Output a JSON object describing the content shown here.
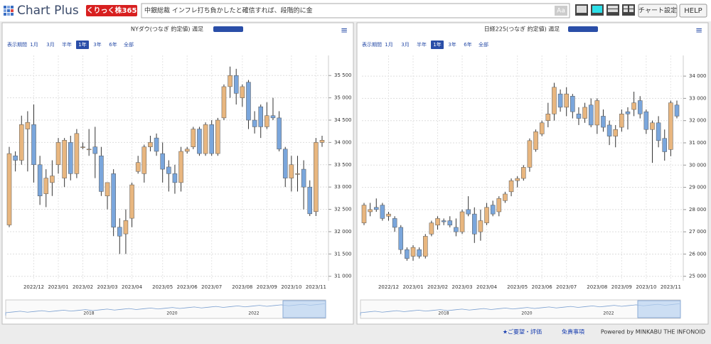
{
  "header": {
    "logo": "Chart Plus",
    "badge": "くりっく株365",
    "ticker": "中銀総裁 インフレ打ち負かしたと確信すれば、段階的に金",
    "font_button": "Aa",
    "buttons": [
      "チャート設定",
      "HELP"
    ]
  },
  "chart_data": [
    {
      "type": "candlestick",
      "title": "NYダウ(つなぎ 約定値) 週足",
      "period_label": "表示期間",
      "periods": [
        "1月",
        "3月",
        "半年",
        "1年",
        "3年",
        "6年",
        "全部"
      ],
      "selected_period": 3,
      "categories": [
        null,
        null,
        null,
        null,
        "2022/12",
        null,
        null,
        null,
        "2023/01",
        null,
        null,
        null,
        "2023/02",
        null,
        null,
        null,
        "2023/03",
        null,
        null,
        null,
        "2023/04",
        null,
        null,
        null,
        null,
        "2023/05",
        null,
        null,
        null,
        "2023/06",
        null,
        null,
        null,
        "2023/07",
        null,
        null,
        null,
        null,
        "2023/08",
        null,
        null,
        null,
        "2023/09",
        null,
        null,
        null,
        "2023/10",
        null,
        null,
        null,
        "2023/11",
        null
      ],
      "open": [
        32150,
        33700,
        33600,
        34300,
        34400,
        33500,
        32850,
        33100,
        33500,
        33200,
        34000,
        33300,
        33900,
        33850,
        33900,
        33700,
        32800,
        33300,
        32100,
        31950,
        32300,
        33350,
        33300,
        33900,
        34100,
        33750,
        33450,
        33300,
        33100,
        33800,
        33900,
        34300,
        33750,
        34400,
        33750,
        34550,
        35250,
        35500,
        35000,
        35350,
        34500,
        34800,
        34350,
        34600,
        34550,
        33850,
        33200,
        33300,
        33400,
        33000,
        32450,
        34000
      ],
      "high": [
        33900,
        33800,
        34600,
        34700,
        34850,
        33700,
        33400,
        33600,
        34100,
        34100,
        34150,
        34300,
        34000,
        34300,
        34350,
        33900,
        33100,
        33400,
        32300,
        32500,
        33100,
        33700,
        33950,
        34150,
        34200,
        34000,
        33600,
        33500,
        33900,
        33900,
        34350,
        34350,
        34450,
        34500,
        34550,
        35300,
        35700,
        35650,
        35300,
        35400,
        34700,
        34850,
        34900,
        35000,
        34700,
        33900,
        33700,
        33700,
        33600,
        33150,
        34100,
        34150
      ],
      "low": [
        32100,
        33350,
        33500,
        33350,
        33100,
        32600,
        32550,
        32800,
        33300,
        33000,
        33150,
        33200,
        33850,
        33700,
        33200,
        32800,
        32500,
        31900,
        31500,
        31500,
        32100,
        33300,
        33100,
        33800,
        33700,
        33100,
        32900,
        32850,
        32900,
        33750,
        33850,
        33700,
        33700,
        33700,
        33700,
        34500,
        35000,
        34850,
        34800,
        34300,
        34200,
        34100,
        34300,
        34500,
        33800,
        33000,
        32900,
        32900,
        32500,
        32350,
        32350,
        33900
      ],
      "close": [
        33750,
        33600,
        34400,
        34450,
        33500,
        32800,
        33200,
        33250,
        34000,
        34050,
        33300,
        34200,
        33900,
        33850,
        33750,
        32900,
        33100,
        32100,
        31900,
        32250,
        33050,
        33550,
        33900,
        34000,
        33800,
        33400,
        33300,
        33100,
        33800,
        33850,
        34300,
        33750,
        34400,
        33750,
        34500,
        35250,
        35500,
        35100,
        35250,
        34500,
        34350,
        34350,
        34600,
        34550,
        33850,
        33200,
        33500,
        33300,
        33000,
        32400,
        34000,
        34050
      ],
      "up_color": "#e8b67f",
      "down_color": "#7aa6dc",
      "grid": true,
      "ylim": [
        30900,
        35950
      ],
      "yticks": [
        {
          "value": 31000,
          "label": "31 000"
        },
        {
          "value": 31500,
          "label": "31 500"
        },
        {
          "value": 32000,
          "label": "32 000"
        },
        {
          "value": 32500,
          "label": "32 500"
        },
        {
          "value": 33000,
          "label": "33 000"
        },
        {
          "value": 33500,
          "label": "33 500"
        },
        {
          "value": 34000,
          "label": "34 000"
        },
        {
          "value": 34500,
          "label": "34 500"
        },
        {
          "value": 35000,
          "label": "35 000"
        },
        {
          "value": 35500,
          "label": "35 500"
        }
      ],
      "navigator_labels": [
        "2018",
        "2020",
        "2022"
      ]
    },
    {
      "type": "candlestick",
      "title": "日経225(つなぎ 約定値) 週足",
      "period_label": "表示期間",
      "periods": [
        "1月",
        "3月",
        "半年",
        "1年",
        "3年",
        "6年",
        "全部"
      ],
      "selected_period": 3,
      "categories": [
        null,
        null,
        null,
        null,
        "2022/12",
        null,
        null,
        null,
        "2023/01",
        null,
        null,
        null,
        "2023/02",
        null,
        null,
        null,
        "2023/03",
        null,
        null,
        null,
        "2023/04",
        null,
        null,
        null,
        null,
        "2023/05",
        null,
        null,
        null,
        "2023/06",
        null,
        null,
        null,
        "2023/07",
        null,
        null,
        null,
        null,
        "2023/08",
        null,
        null,
        null,
        "2023/09",
        null,
        null,
        null,
        "2023/10",
        null,
        null,
        null,
        "2023/11",
        null
      ],
      "open": [
        27400,
        27900,
        28100,
        28200,
        27700,
        27600,
        27200,
        26200,
        25900,
        26200,
        25900,
        26900,
        27300,
        27500,
        27500,
        27200,
        27000,
        28000,
        27800,
        27000,
        27400,
        28200,
        27900,
        28400,
        28800,
        29300,
        29400,
        29900,
        30700,
        31400,
        32000,
        32300,
        33200,
        32600,
        33100,
        32300,
        32100,
        32700,
        31800,
        32200,
        31800,
        31300,
        31700,
        32400,
        32500,
        32900,
        32400,
        31600,
        31900,
        31200,
        30700,
        32700
      ],
      "high": [
        28300,
        28300,
        28500,
        28300,
        27900,
        27700,
        27300,
        26300,
        26400,
        26300,
        26900,
        27500,
        27700,
        27600,
        27700,
        27600,
        28000,
        28600,
        28100,
        28000,
        28300,
        28400,
        28600,
        28800,
        29400,
        29500,
        30000,
        31200,
        31600,
        32000,
        32800,
        33700,
        33400,
        33500,
        33200,
        32600,
        32800,
        33000,
        33000,
        32500,
        32000,
        31800,
        32500,
        32600,
        33300,
        33100,
        32500,
        32000,
        32200,
        31600,
        32900,
        32900
      ],
      "low": [
        27300,
        27700,
        27900,
        27500,
        27500,
        27000,
        26000,
        25700,
        25700,
        25800,
        25800,
        26800,
        27100,
        27300,
        27200,
        26800,
        26900,
        27700,
        26500,
        26600,
        27300,
        27700,
        27700,
        28300,
        28600,
        29000,
        29300,
        29700,
        30600,
        31300,
        31700,
        32000,
        32400,
        32200,
        32100,
        31800,
        31900,
        31700,
        31400,
        31500,
        30900,
        30800,
        31500,
        31600,
        32200,
        32100,
        31400,
        30100,
        30800,
        30200,
        30400,
        32100
      ],
      "close": [
        28200,
        28000,
        28000,
        27600,
        27800,
        27200,
        26200,
        25800,
        26300,
        25900,
        26800,
        27400,
        27600,
        27450,
        27300,
        27000,
        27900,
        27800,
        26900,
        27500,
        28100,
        27800,
        28500,
        28700,
        29300,
        29400,
        29900,
        31100,
        31500,
        31900,
        32300,
        33500,
        32600,
        33200,
        32400,
        32100,
        32600,
        31800,
        32900,
        31700,
        31300,
        31600,
        32300,
        32300,
        32800,
        32300,
        31600,
        31900,
        31100,
        30600,
        32800,
        32200
      ],
      "up_color": "#e8b67f",
      "down_color": "#7aa6dc",
      "grid": true,
      "ylim": [
        24800,
        34930
      ],
      "yticks": [
        {
          "value": 25000,
          "label": "25 000"
        },
        {
          "value": 26000,
          "label": "26 000"
        },
        {
          "value": 27000,
          "label": "27 000"
        },
        {
          "value": 28000,
          "label": "28 000"
        },
        {
          "value": 29000,
          "label": "29 000"
        },
        {
          "value": 30000,
          "label": "30 000"
        },
        {
          "value": 31000,
          "label": "31 000"
        },
        {
          "value": 32000,
          "label": "32 000"
        },
        {
          "value": 33000,
          "label": "33 000"
        },
        {
          "value": 34000,
          "label": "34 000"
        }
      ],
      "navigator_labels": [
        "2018",
        "2020",
        "2022"
      ]
    }
  ],
  "footer": {
    "links": [
      "★ご要望・評価",
      "免責事項"
    ],
    "powered": "Powered by MINKABU THE INFONOID"
  }
}
